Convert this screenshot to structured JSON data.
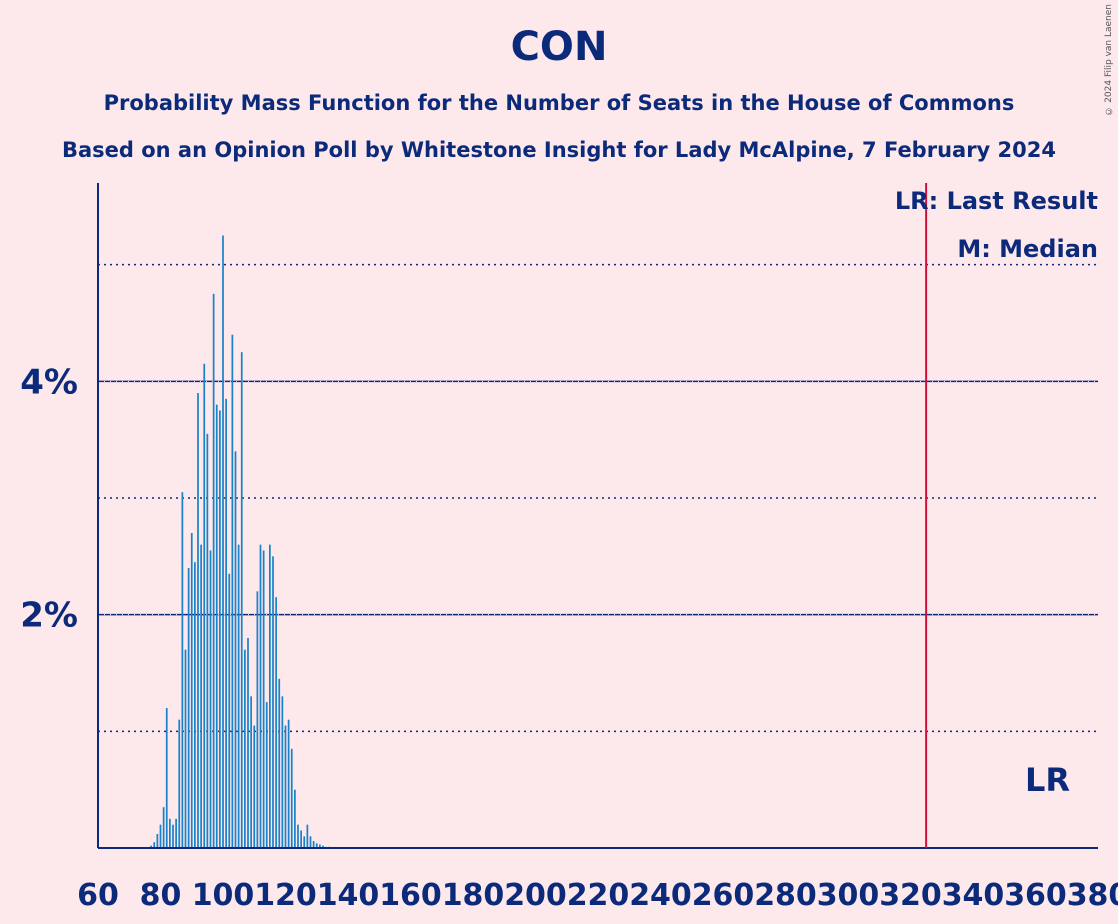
{
  "title": "CON",
  "subtitle1": "Probability Mass Function for the Number of Seats in the House of Commons",
  "subtitle2": "Based on an Opinion Poll by Whitestone Insight for Lady McAlpine, 7 February 2024",
  "copyright": "© 2024 Filip van Laenen",
  "legend": {
    "last_result": "LR: Last Result",
    "median": "M: Median"
  },
  "lr_marker_label": "LR",
  "colors": {
    "background": "#fde8ec",
    "text": "#0c2a7a",
    "bars": "#1a82c8",
    "lr_line": "#d0103a"
  },
  "chart_data": {
    "type": "bar",
    "xlim": [
      60,
      380
    ],
    "ylim": [
      0,
      5.7
    ],
    "x_ticks": [
      60,
      80,
      100,
      120,
      140,
      160,
      180,
      200,
      220,
      240,
      260,
      280,
      300,
      320,
      340,
      360,
      380
    ],
    "y_ticks_labeled": [
      {
        "value": 2,
        "label": "2%"
      },
      {
        "value": 4,
        "label": "4%"
      }
    ],
    "y_gridlines_minor": [
      1,
      3,
      5
    ],
    "last_result_seats": 325,
    "x": [
      77,
      78,
      79,
      80,
      81,
      82,
      83,
      84,
      85,
      86,
      87,
      88,
      89,
      90,
      91,
      92,
      93,
      94,
      95,
      96,
      97,
      98,
      99,
      100,
      101,
      102,
      103,
      104,
      105,
      106,
      107,
      108,
      109,
      110,
      111,
      112,
      113,
      114,
      115,
      116,
      117,
      118,
      119,
      120,
      121,
      122,
      123,
      124,
      125,
      126,
      127,
      128,
      129,
      130,
      131,
      132,
      133,
      134
    ],
    "values": [
      0.02,
      0.05,
      0.12,
      0.2,
      0.35,
      1.2,
      0.25,
      0.2,
      0.25,
      1.1,
      3.05,
      1.7,
      2.4,
      2.7,
      2.45,
      3.9,
      2.6,
      4.15,
      3.55,
      2.55,
      4.75,
      3.8,
      3.75,
      5.25,
      3.85,
      2.35,
      4.4,
      3.4,
      2.6,
      4.25,
      1.7,
      1.8,
      1.3,
      1.05,
      2.2,
      2.6,
      2.55,
      1.25,
      2.6,
      2.5,
      2.15,
      1.45,
      1.3,
      1.05,
      1.1,
      0.85,
      0.5,
      0.2,
      0.15,
      0.1,
      0.2,
      0.1,
      0.06,
      0.04,
      0.03,
      0.02,
      0.01,
      0.01
    ]
  }
}
